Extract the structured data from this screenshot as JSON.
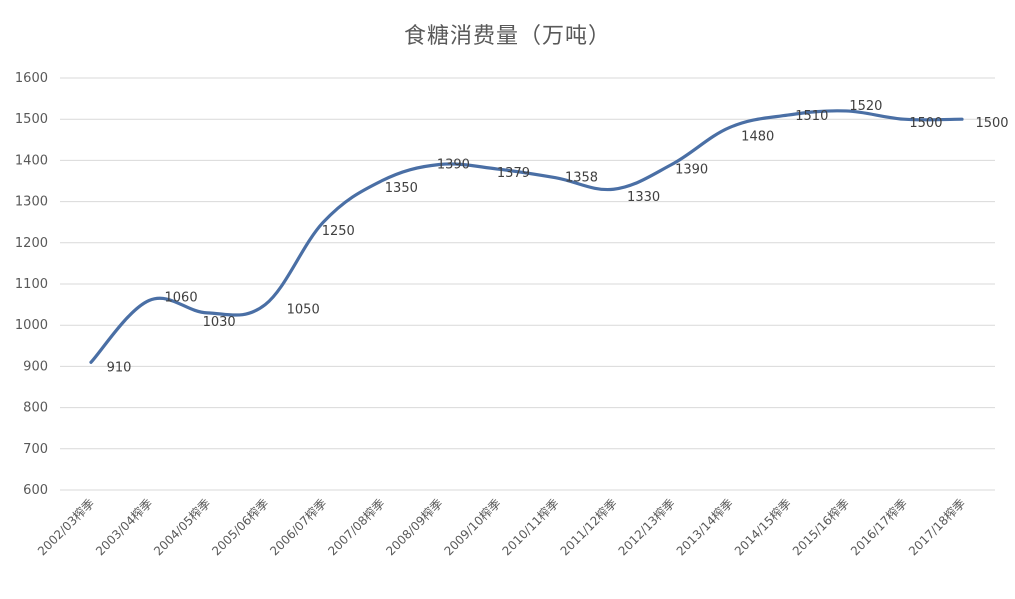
{
  "chart_data": {
    "type": "line",
    "title": "食糖消费量（万吨）",
    "xlabel": "",
    "ylabel": "",
    "ylim": [
      600,
      1600
    ],
    "ytick_step": 100,
    "grid": true,
    "categories": [
      "2002/03榨季",
      "2003/04榨季",
      "2004/05榨季",
      "2005/06榨季",
      "2006/07榨季",
      "2007/08榨季",
      "2008/09榨季",
      "2009/10榨季",
      "2010/11榨季",
      "2011/12榨季",
      "2012/13榨季",
      "2013/14榨季",
      "2014/15榨季",
      "2015/16榨季",
      "2016/17榨季",
      "2017/18榨季"
    ],
    "series": [
      {
        "values": [
          910,
          1060,
          1030,
          1050,
          1250,
          1350,
          1390,
          1379,
          1358,
          1330,
          1390,
          1480,
          1510,
          1520,
          1500,
          1500
        ],
        "color": "#4a6fa5"
      }
    ],
    "data_labels": [
      "910",
      "1060",
      "1030",
      "1050",
      "1250",
      "1350",
      "1390",
      "1379",
      "1358",
      "1330",
      "1390",
      "1480",
      "1510",
      "1520",
      "1500",
      "1500"
    ]
  }
}
